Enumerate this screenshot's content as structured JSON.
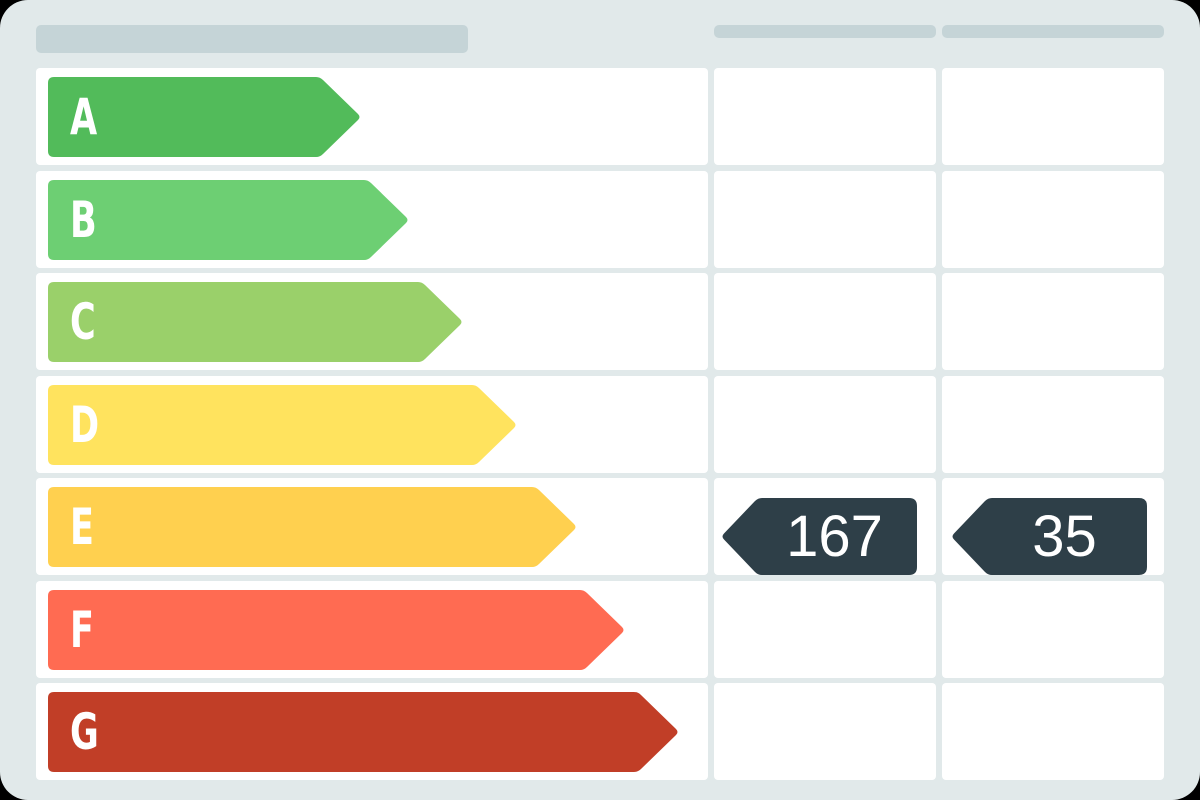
{
  "ratings": [
    {
      "letter": "A",
      "color": "#52bb5a"
    },
    {
      "letter": "B",
      "color": "#6dcf73"
    },
    {
      "letter": "C",
      "color": "#9ad06a"
    },
    {
      "letter": "D",
      "color": "#ffe35e"
    },
    {
      "letter": "E",
      "color": "#ffd04f"
    },
    {
      "letter": "F",
      "color": "#ff6b52"
    },
    {
      "letter": "G",
      "color": "#c13e27"
    }
  ],
  "current": {
    "value": "167",
    "rating": "E"
  },
  "potential": {
    "value": "35",
    "rating": "E"
  },
  "colors": {
    "background": "#e1e9ea",
    "placeholder": "#c5d4d7",
    "badge": "#2e3f48"
  }
}
